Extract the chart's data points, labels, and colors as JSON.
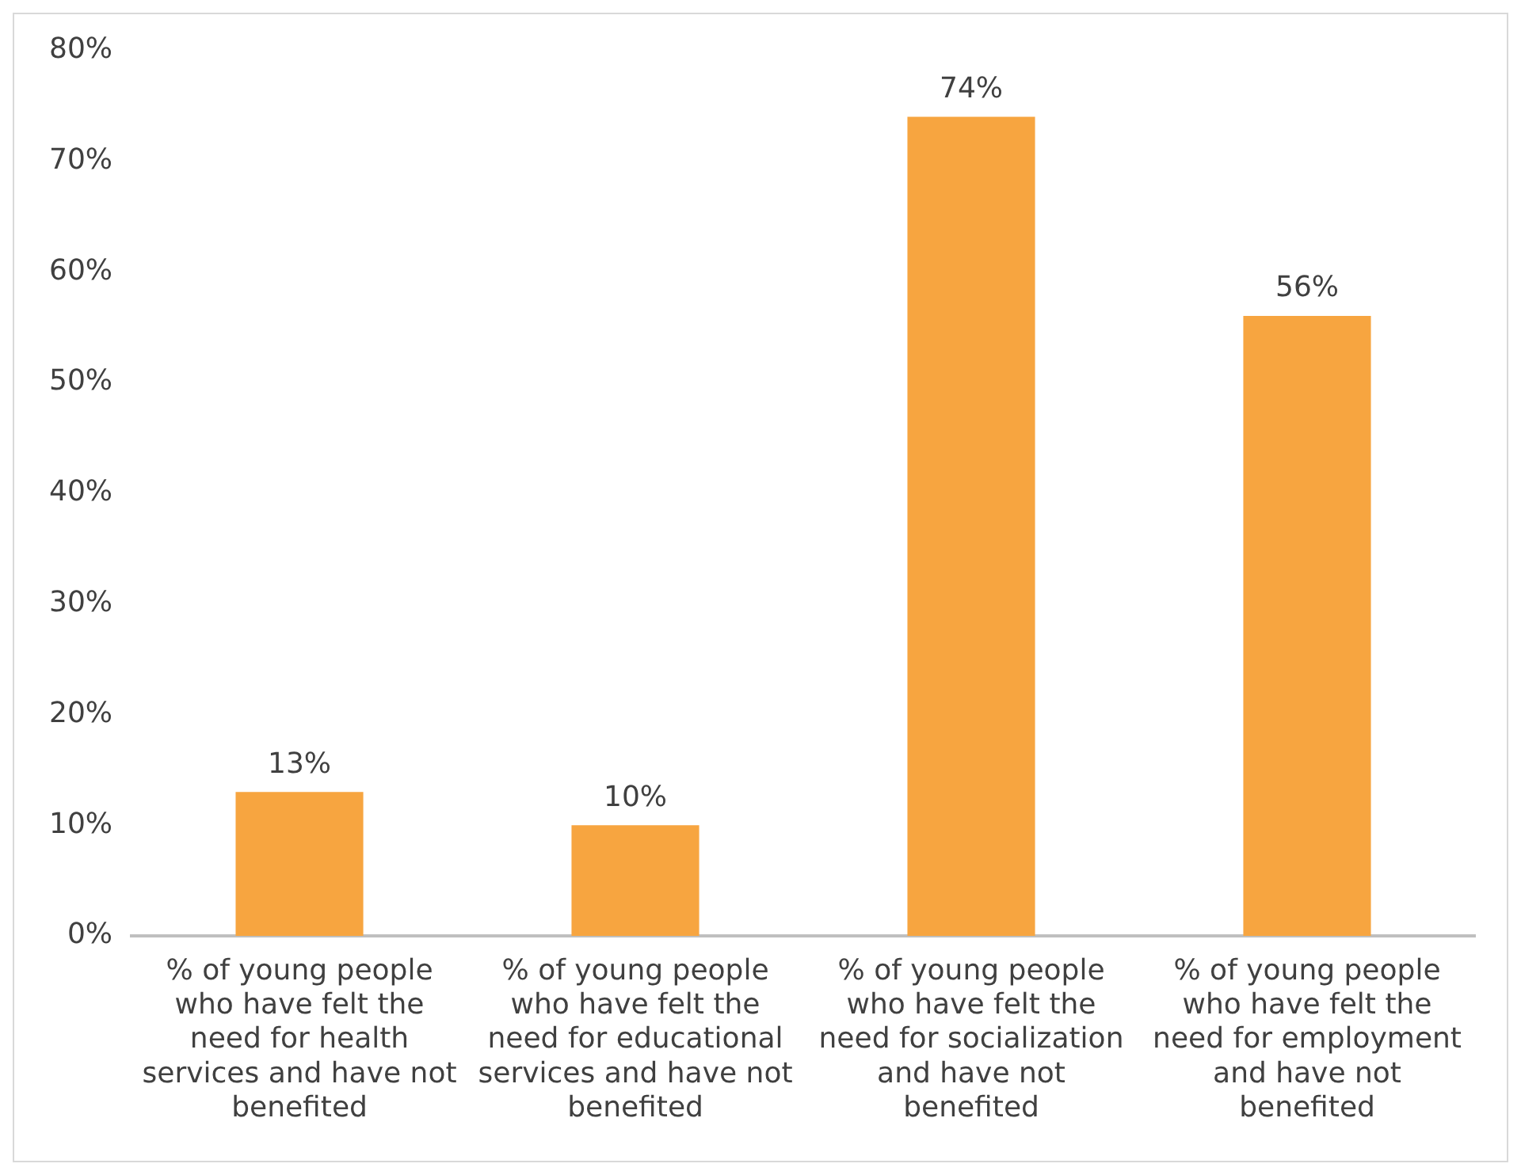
{
  "chart_data": {
    "type": "bar",
    "categories": [
      "% of young people who have felt the need for health services and have not benefited",
      "% of young people who have felt the need for educational services and have not benefited",
      "% of young people who have felt the need for socialization and have not benefited",
      "% of young people who have felt the need for employment and have not benefited"
    ],
    "values": [
      13,
      10,
      74,
      56
    ],
    "value_labels": [
      "13%",
      "10%",
      "74%",
      "56%"
    ],
    "color": "#f7a540",
    "ylim": [
      0,
      80
    ],
    "yticks": [
      {
        "value": 0,
        "label": "0%"
      },
      {
        "value": 10,
        "label": "10%"
      },
      {
        "value": 20,
        "label": "20%"
      },
      {
        "value": 30,
        "label": "30%"
      },
      {
        "value": 40,
        "label": "40%"
      },
      {
        "value": 50,
        "label": "50%"
      },
      {
        "value": 60,
        "label": "60%"
      },
      {
        "value": 70,
        "label": "70%"
      },
      {
        "value": 80,
        "label": "80%"
      }
    ],
    "grid": false,
    "legend": false
  }
}
